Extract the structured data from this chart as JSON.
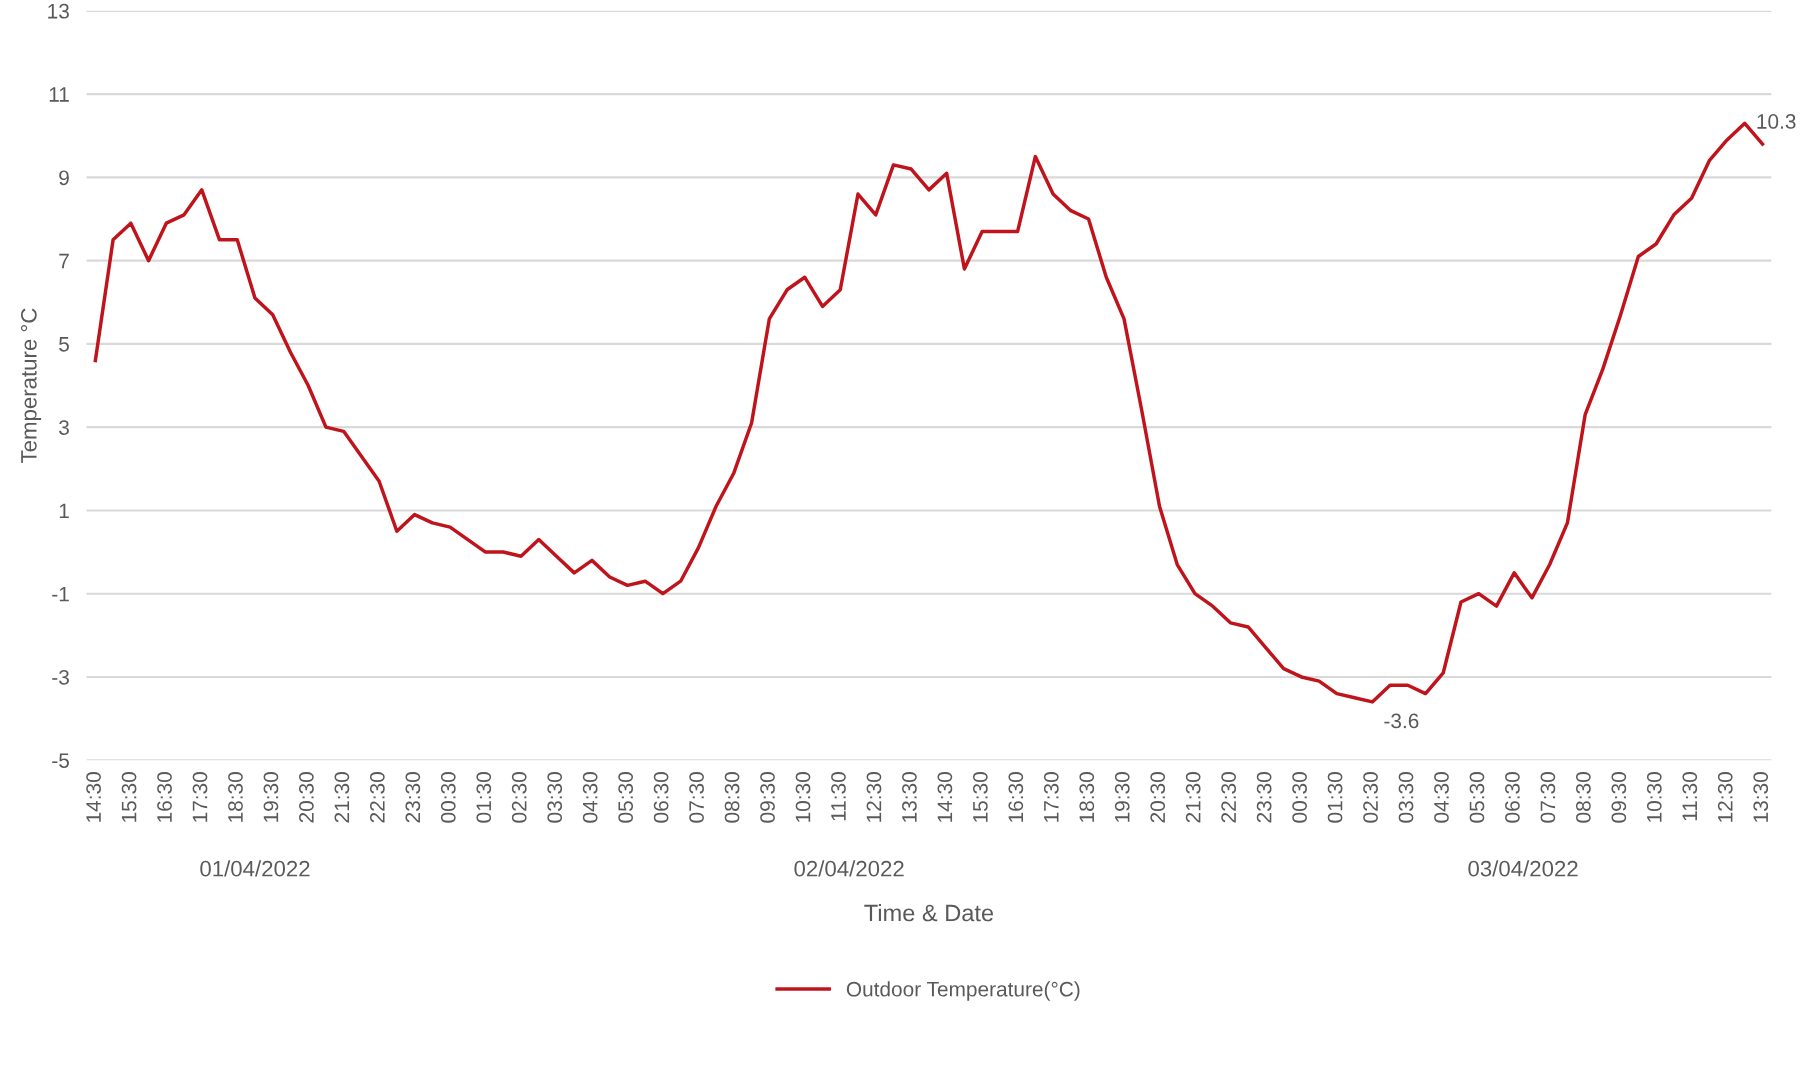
{
  "chart_data": {
    "type": "line",
    "xlabel": "Time & Date",
    "ylabel": "Temperature °C",
    "x": [
      "2022-04-01T14:30",
      "2022-04-01T15:00",
      "2022-04-01T15:30",
      "2022-04-01T16:00",
      "2022-04-01T16:30",
      "2022-04-01T17:00",
      "2022-04-01T17:30",
      "2022-04-01T18:00",
      "2022-04-01T18:30",
      "2022-04-01T19:00",
      "2022-04-01T19:30",
      "2022-04-01T20:00",
      "2022-04-01T20:30",
      "2022-04-01T21:00",
      "2022-04-01T21:30",
      "2022-04-01T22:00",
      "2022-04-01T22:30",
      "2022-04-01T23:00",
      "2022-04-01T23:30",
      "2022-04-02T00:00",
      "2022-04-02T00:30",
      "2022-04-02T01:00",
      "2022-04-02T01:30",
      "2022-04-02T02:00",
      "2022-04-02T02:30",
      "2022-04-02T03:00",
      "2022-04-02T03:30",
      "2022-04-02T04:00",
      "2022-04-02T04:30",
      "2022-04-02T05:00",
      "2022-04-02T05:30",
      "2022-04-02T06:00",
      "2022-04-02T06:30",
      "2022-04-02T07:00",
      "2022-04-02T07:30",
      "2022-04-02T08:00",
      "2022-04-02T08:30",
      "2022-04-02T09:00",
      "2022-04-02T09:30",
      "2022-04-02T10:00",
      "2022-04-02T10:30",
      "2022-04-02T11:00",
      "2022-04-02T11:30",
      "2022-04-02T12:00",
      "2022-04-02T12:30",
      "2022-04-02T13:00",
      "2022-04-02T13:30",
      "2022-04-02T14:00",
      "2022-04-02T14:30",
      "2022-04-02T15:00",
      "2022-04-02T15:30",
      "2022-04-02T16:00",
      "2022-04-02T16:30",
      "2022-04-02T17:00",
      "2022-04-02T17:30",
      "2022-04-02T18:00",
      "2022-04-02T18:30",
      "2022-04-02T19:00",
      "2022-04-02T19:30",
      "2022-04-02T20:00",
      "2022-04-02T20:30",
      "2022-04-02T21:00",
      "2022-04-02T21:30",
      "2022-04-02T22:00",
      "2022-04-02T22:30",
      "2022-04-02T23:00",
      "2022-04-02T23:30",
      "2022-04-03T00:00",
      "2022-04-03T00:30",
      "2022-04-03T01:00",
      "2022-04-03T01:30",
      "2022-04-03T02:00",
      "2022-04-03T02:30",
      "2022-04-03T03:00",
      "2022-04-03T03:30",
      "2022-04-03T04:00",
      "2022-04-03T04:30",
      "2022-04-03T05:00",
      "2022-04-03T05:30",
      "2022-04-03T06:00",
      "2022-04-03T06:30",
      "2022-04-03T07:00",
      "2022-04-03T07:30",
      "2022-04-03T08:00",
      "2022-04-03T08:30",
      "2022-04-03T09:00",
      "2022-04-03T09:30",
      "2022-04-03T10:00",
      "2022-04-03T10:30",
      "2022-04-03T11:00",
      "2022-04-03T11:30",
      "2022-04-03T12:00",
      "2022-04-03T12:30",
      "2022-04-03T13:00",
      "2022-04-03T13:30"
    ],
    "series": [
      {
        "name": "Outdoor Temperature(°C)",
        "color": "#c0141c",
        "values": [
          4.6,
          7.5,
          7.9,
          7.0,
          7.9,
          8.1,
          8.7,
          7.5,
          7.5,
          6.1,
          5.7,
          4.8,
          4.0,
          3.0,
          2.9,
          2.3,
          1.7,
          0.5,
          0.9,
          0.7,
          0.6,
          0.3,
          0.0,
          0.0,
          -0.1,
          0.3,
          -0.1,
          -0.5,
          -0.2,
          -0.6,
          -0.8,
          -0.7,
          -1.0,
          -0.7,
          0.1,
          1.1,
          1.9,
          3.1,
          5.6,
          6.3,
          6.6,
          5.9,
          6.3,
          8.6,
          8.1,
          9.3,
          9.2,
          8.7,
          9.1,
          6.8,
          7.7,
          7.7,
          7.7,
          9.5,
          8.6,
          8.2,
          8.0,
          6.6,
          5.6,
          3.4,
          1.1,
          -0.3,
          -1.0,
          -1.3,
          -1.7,
          -1.8,
          -2.3,
          -2.8,
          -3.0,
          -3.1,
          -3.4,
          -3.5,
          -3.6,
          -3.2,
          -3.2,
          -3.4,
          -2.9,
          -1.2,
          -1.0,
          -1.3,
          -0.5,
          -1.1,
          -0.3,
          0.7,
          3.3,
          4.4,
          5.7,
          7.1,
          7.4,
          8.1,
          8.5,
          9.4,
          9.9,
          10.3,
          9.8
        ],
        "value_labels": [
          null,
          null,
          null,
          null,
          null,
          null,
          null,
          null,
          null,
          null,
          null,
          null,
          null,
          null,
          null,
          null,
          null,
          null,
          null,
          null,
          null,
          null,
          null,
          null,
          null,
          null,
          null,
          null,
          null,
          null,
          null,
          null,
          null,
          null,
          null,
          null,
          null,
          null,
          null,
          null,
          null,
          null,
          null,
          null,
          null,
          null,
          null,
          null,
          null,
          null,
          null,
          null,
          null,
          null,
          null,
          null,
          null,
          null,
          null,
          null,
          null,
          null,
          null,
          null,
          null,
          null,
          null,
          null,
          null,
          null,
          null,
          null,
          "-3.6",
          null,
          null,
          null,
          null,
          null,
          null,
          null,
          null,
          null,
          null,
          null,
          null,
          null,
          null,
          null,
          null,
          null,
          null,
          null,
          null,
          "10.3",
          null
        ]
      }
    ],
    "xlim": [
      "2022-04-01T14:15",
      "2022-04-03T13:45"
    ],
    "xticks": [
      {
        "value": "2022-04-01T14:30",
        "label": "14:30"
      },
      {
        "value": "2022-04-01T15:30",
        "label": "15:30"
      },
      {
        "value": "2022-04-01T16:30",
        "label": "16:30"
      },
      {
        "value": "2022-04-01T17:30",
        "label": "17:30"
      },
      {
        "value": "2022-04-01T18:30",
        "label": "18:30"
      },
      {
        "value": "2022-04-01T19:30",
        "label": "19:30"
      },
      {
        "value": "2022-04-01T20:30",
        "label": "20:30"
      },
      {
        "value": "2022-04-01T21:30",
        "label": "21:30"
      },
      {
        "value": "2022-04-01T22:30",
        "label": "22:30"
      },
      {
        "value": "2022-04-01T23:30",
        "label": "23:30"
      },
      {
        "value": "2022-04-02T00:30",
        "label": "00:30"
      },
      {
        "value": "2022-04-02T01:30",
        "label": "01:30"
      },
      {
        "value": "2022-04-02T02:30",
        "label": "02:30"
      },
      {
        "value": "2022-04-02T03:30",
        "label": "03:30"
      },
      {
        "value": "2022-04-02T04:30",
        "label": "04:30"
      },
      {
        "value": "2022-04-02T05:30",
        "label": "05:30"
      },
      {
        "value": "2022-04-02T06:30",
        "label": "06:30"
      },
      {
        "value": "2022-04-02T07:30",
        "label": "07:30"
      },
      {
        "value": "2022-04-02T08:30",
        "label": "08:30"
      },
      {
        "value": "2022-04-02T09:30",
        "label": "09:30"
      },
      {
        "value": "2022-04-02T10:30",
        "label": "10:30"
      },
      {
        "value": "2022-04-02T11:30",
        "label": "11:30"
      },
      {
        "value": "2022-04-02T12:30",
        "label": "12:30"
      },
      {
        "value": "2022-04-02T13:30",
        "label": "13:30"
      },
      {
        "value": "2022-04-02T14:30",
        "label": "14:30"
      },
      {
        "value": "2022-04-02T15:30",
        "label": "15:30"
      },
      {
        "value": "2022-04-02T16:30",
        "label": "16:30"
      },
      {
        "value": "2022-04-02T17:30",
        "label": "17:30"
      },
      {
        "value": "2022-04-02T18:30",
        "label": "18:30"
      },
      {
        "value": "2022-04-02T19:30",
        "label": "19:30"
      },
      {
        "value": "2022-04-02T20:30",
        "label": "20:30"
      },
      {
        "value": "2022-04-02T21:30",
        "label": "21:30"
      },
      {
        "value": "2022-04-02T22:30",
        "label": "22:30"
      },
      {
        "value": "2022-04-02T23:30",
        "label": "23:30"
      },
      {
        "value": "2022-04-03T00:30",
        "label": "00:30"
      },
      {
        "value": "2022-04-03T01:30",
        "label": "01:30"
      },
      {
        "value": "2022-04-03T02:30",
        "label": "02:30"
      },
      {
        "value": "2022-04-03T03:30",
        "label": "03:30"
      },
      {
        "value": "2022-04-03T04:30",
        "label": "04:30"
      },
      {
        "value": "2022-04-03T05:30",
        "label": "05:30"
      },
      {
        "value": "2022-04-03T06:30",
        "label": "06:30"
      },
      {
        "value": "2022-04-03T07:30",
        "label": "07:30"
      },
      {
        "value": "2022-04-03T08:30",
        "label": "08:30"
      },
      {
        "value": "2022-04-03T09:30",
        "label": "09:30"
      },
      {
        "value": "2022-04-03T10:30",
        "label": "10:30"
      },
      {
        "value": "2022-04-03T11:30",
        "label": "11:30"
      },
      {
        "value": "2022-04-03T12:30",
        "label": "12:30"
      },
      {
        "value": "2022-04-03T13:30",
        "label": "13:30"
      }
    ],
    "ylim": [
      -5,
      13
    ],
    "yticks": [
      -5,
      -3,
      -1,
      1,
      3,
      5,
      7,
      9,
      11,
      13
    ],
    "annotations": [
      "01/04/2022",
      "02/04/2022",
      "03/04/2022"
    ],
    "grid": "y",
    "legend": "bottom",
    "marker": "none",
    "line_style": "solid"
  }
}
